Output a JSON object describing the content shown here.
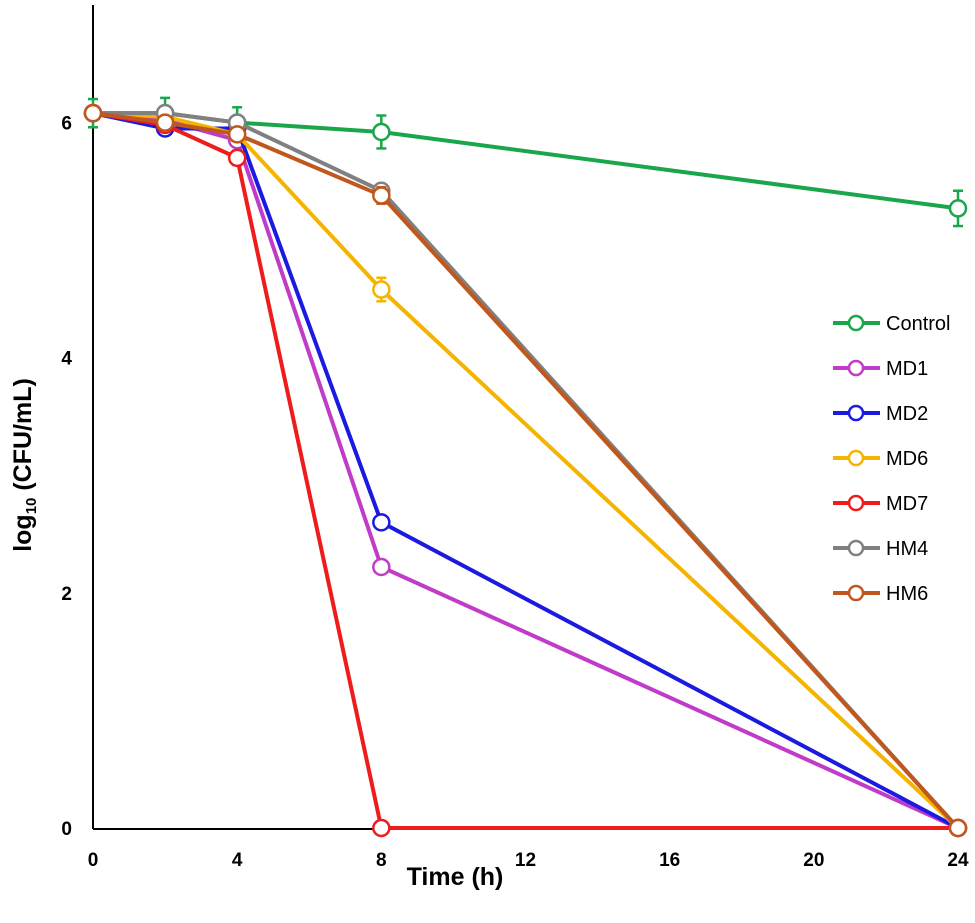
{
  "chart_data": {
    "type": "line",
    "title": "",
    "xlabel": "Time (h)",
    "ylabel_parts": {
      "pre": "log",
      "sub": "10",
      "post": " (CFU/mL)"
    },
    "xlim": [
      0,
      24
    ],
    "ylim": [
      0,
      7
    ],
    "xticks": [
      0,
      4,
      8,
      12,
      16,
      20,
      24
    ],
    "yticks": [
      0,
      2,
      4,
      6
    ],
    "grid": false,
    "legend_position": "right",
    "series": [
      {
        "name": "Control",
        "color": "#1aa64a",
        "x": [
          0,
          2,
          4,
          8,
          24
        ],
        "y": [
          6.08,
          6.08,
          6.0,
          5.92,
          5.27
        ],
        "err": [
          0.12,
          0.13,
          0.13,
          0.14,
          0.15
        ]
      },
      {
        "name": "MD1",
        "color": "#c03cc8",
        "x": [
          0,
          2,
          4,
          8,
          24
        ],
        "y": [
          6.08,
          6.02,
          5.85,
          2.22,
          0
        ],
        "err": [
          0,
          0,
          0,
          0,
          0
        ]
      },
      {
        "name": "MD2",
        "color": "#1a1ae0",
        "x": [
          0,
          2,
          4,
          8,
          24
        ],
        "y": [
          6.08,
          5.95,
          5.95,
          2.6,
          0
        ],
        "err": [
          0,
          0.04,
          0,
          0,
          0
        ]
      },
      {
        "name": "MD6",
        "color": "#f5b400",
        "x": [
          0,
          2,
          4,
          8,
          24
        ],
        "y": [
          6.08,
          6.05,
          5.9,
          4.58,
          0
        ],
        "err": [
          0,
          0,
          0,
          0.1,
          0
        ]
      },
      {
        "name": "MD7",
        "color": "#ee1c1c",
        "x": [
          0,
          2,
          4,
          8,
          24
        ],
        "y": [
          6.08,
          5.98,
          5.7,
          0,
          0
        ],
        "err": [
          0,
          0,
          0.06,
          0,
          0
        ]
      },
      {
        "name": "HM4",
        "color": "#808080",
        "x": [
          0,
          2,
          4,
          8,
          24
        ],
        "y": [
          6.08,
          6.08,
          6.0,
          5.42,
          0
        ],
        "err": [
          0,
          0.05,
          0,
          0.04,
          0
        ]
      },
      {
        "name": "HM6",
        "color": "#c0571c",
        "x": [
          0,
          2,
          4,
          8,
          24
        ],
        "y": [
          6.08,
          6.0,
          5.9,
          5.38,
          0
        ],
        "err": [
          0,
          0,
          0,
          0.07,
          0
        ]
      }
    ]
  }
}
